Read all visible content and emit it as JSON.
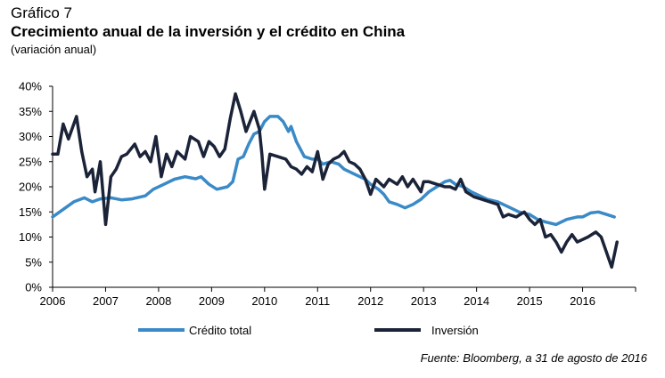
{
  "header": {
    "kicker": "Gráfico 7",
    "title": "Crecimiento anual de la inversión y el crédito en China",
    "subtitle": "(variación anual)"
  },
  "source": "Fuente: Bloomberg, a 31 de agosto de 2016",
  "colors": {
    "credito": "#3a8ac8",
    "inversion": "#1b2338",
    "axis": "#000000"
  },
  "chart_data": {
    "type": "line",
    "title": "Crecimiento anual de la inversión y el crédito en China",
    "subtitle": "(variación anual)",
    "xlabel": "",
    "ylabel": "",
    "xlim": [
      2006,
      2017
    ],
    "ylim": [
      0,
      40
    ],
    "x_ticks": [
      "2006",
      "2007",
      "2008",
      "2009",
      "2010",
      "2011",
      "2012",
      "2013",
      "2014",
      "2015",
      "2016"
    ],
    "y_ticks": [
      "0%",
      "5%",
      "10%",
      "15%",
      "20%",
      "25%",
      "30%",
      "35%",
      "40%"
    ],
    "grid": false,
    "legend_position": "bottom",
    "series": [
      {
        "name": "Crédito total",
        "color": "#3a8ac8",
        "points": [
          [
            2006.0,
            14
          ],
          [
            2006.2,
            15.5
          ],
          [
            2006.4,
            17
          ],
          [
            2006.6,
            17.8
          ],
          [
            2006.75,
            17
          ],
          [
            2006.9,
            17.6
          ],
          [
            2007.1,
            17.8
          ],
          [
            2007.3,
            17.4
          ],
          [
            2007.5,
            17.6
          ],
          [
            2007.75,
            18.2
          ],
          [
            2007.9,
            19.5
          ],
          [
            2008.1,
            20.5
          ],
          [
            2008.3,
            21.5
          ],
          [
            2008.5,
            22
          ],
          [
            2008.7,
            21.6
          ],
          [
            2008.8,
            22
          ],
          [
            2008.95,
            20.5
          ],
          [
            2009.1,
            19.5
          ],
          [
            2009.3,
            20
          ],
          [
            2009.4,
            21
          ],
          [
            2009.5,
            25.5
          ],
          [
            2009.6,
            26
          ],
          [
            2009.7,
            28.5
          ],
          [
            2009.8,
            30.5
          ],
          [
            2009.9,
            31
          ],
          [
            2010.0,
            33
          ],
          [
            2010.1,
            34
          ],
          [
            2010.25,
            34
          ],
          [
            2010.35,
            33
          ],
          [
            2010.45,
            31
          ],
          [
            2010.5,
            32
          ],
          [
            2010.6,
            29
          ],
          [
            2010.75,
            26
          ],
          [
            2010.9,
            25.5
          ],
          [
            2011.0,
            25.5
          ],
          [
            2011.1,
            24.5
          ],
          [
            2011.25,
            25
          ],
          [
            2011.4,
            24.5
          ],
          [
            2011.5,
            23.5
          ],
          [
            2011.7,
            22.5
          ],
          [
            2011.9,
            21.5
          ],
          [
            2012.0,
            20.5
          ],
          [
            2012.15,
            19.5
          ],
          [
            2012.25,
            18.5
          ],
          [
            2012.35,
            17
          ],
          [
            2012.5,
            16.5
          ],
          [
            2012.65,
            15.8
          ],
          [
            2012.8,
            16.5
          ],
          [
            2012.95,
            17.5
          ],
          [
            2013.1,
            19
          ],
          [
            2013.25,
            20
          ],
          [
            2013.4,
            21
          ],
          [
            2013.5,
            21.3
          ],
          [
            2013.6,
            20.5
          ],
          [
            2013.75,
            20
          ],
          [
            2013.9,
            19
          ],
          [
            2014.0,
            18.5
          ],
          [
            2014.2,
            17.5
          ],
          [
            2014.4,
            17
          ],
          [
            2014.6,
            16
          ],
          [
            2014.8,
            15
          ],
          [
            2015.0,
            14.5
          ],
          [
            2015.15,
            13.5
          ],
          [
            2015.3,
            13
          ],
          [
            2015.5,
            12.5
          ],
          [
            2015.7,
            13.5
          ],
          [
            2015.9,
            14
          ],
          [
            2016.0,
            14
          ],
          [
            2016.15,
            14.8
          ],
          [
            2016.3,
            15
          ],
          [
            2016.45,
            14.5
          ],
          [
            2016.6,
            14
          ]
        ]
      },
      {
        "name": "Inversión",
        "color": "#1b2338",
        "points": [
          [
            2006.0,
            26.5
          ],
          [
            2006.1,
            26.5
          ],
          [
            2006.2,
            32.5
          ],
          [
            2006.3,
            29.5
          ],
          [
            2006.45,
            34
          ],
          [
            2006.55,
            27
          ],
          [
            2006.65,
            22
          ],
          [
            2006.75,
            23.5
          ],
          [
            2006.8,
            19
          ],
          [
            2006.9,
            25
          ],
          [
            2007.0,
            12.5
          ],
          [
            2007.1,
            22
          ],
          [
            2007.2,
            23.5
          ],
          [
            2007.3,
            26
          ],
          [
            2007.4,
            26.5
          ],
          [
            2007.55,
            28.5
          ],
          [
            2007.65,
            26
          ],
          [
            2007.75,
            27
          ],
          [
            2007.85,
            25
          ],
          [
            2007.95,
            30
          ],
          [
            2008.05,
            22
          ],
          [
            2008.15,
            26.5
          ],
          [
            2008.25,
            24
          ],
          [
            2008.35,
            27
          ],
          [
            2008.5,
            25.5
          ],
          [
            2008.6,
            30
          ],
          [
            2008.75,
            29
          ],
          [
            2008.85,
            26
          ],
          [
            2008.95,
            29
          ],
          [
            2009.05,
            28
          ],
          [
            2009.15,
            26
          ],
          [
            2009.25,
            27.5
          ],
          [
            2009.35,
            33.5
          ],
          [
            2009.45,
            38.5
          ],
          [
            2009.55,
            35
          ],
          [
            2009.65,
            31
          ],
          [
            2009.8,
            35
          ],
          [
            2009.9,
            31.5
          ],
          [
            2009.95,
            26.5
          ],
          [
            2010.0,
            19.5
          ],
          [
            2010.1,
            26.5
          ],
          [
            2010.25,
            26
          ],
          [
            2010.4,
            25.5
          ],
          [
            2010.5,
            24
          ],
          [
            2010.6,
            23.5
          ],
          [
            2010.7,
            22.5
          ],
          [
            2010.8,
            24
          ],
          [
            2010.9,
            23
          ],
          [
            2011.0,
            27
          ],
          [
            2011.1,
            21.5
          ],
          [
            2011.2,
            24.5
          ],
          [
            2011.3,
            25.5
          ],
          [
            2011.4,
            26
          ],
          [
            2011.5,
            27
          ],
          [
            2011.6,
            25
          ],
          [
            2011.7,
            24.5
          ],
          [
            2011.8,
            23.5
          ],
          [
            2011.9,
            21.5
          ],
          [
            2012.0,
            18.5
          ],
          [
            2012.1,
            21.5
          ],
          [
            2012.25,
            20
          ],
          [
            2012.35,
            21.5
          ],
          [
            2012.5,
            20.5
          ],
          [
            2012.6,
            22
          ],
          [
            2012.7,
            20
          ],
          [
            2012.8,
            21.5
          ],
          [
            2012.95,
            19
          ],
          [
            2013.0,
            21
          ],
          [
            2013.1,
            21
          ],
          [
            2013.25,
            20.5
          ],
          [
            2013.4,
            20
          ],
          [
            2013.5,
            20
          ],
          [
            2013.6,
            19.5
          ],
          [
            2013.7,
            21.5
          ],
          [
            2013.8,
            19
          ],
          [
            2013.95,
            18
          ],
          [
            2014.1,
            17.5
          ],
          [
            2014.25,
            17
          ],
          [
            2014.4,
            16.5
          ],
          [
            2014.5,
            14
          ],
          [
            2014.6,
            14.5
          ],
          [
            2014.75,
            14
          ],
          [
            2014.9,
            15
          ],
          [
            2015.0,
            13.5
          ],
          [
            2015.1,
            12.5
          ],
          [
            2015.2,
            13.5
          ],
          [
            2015.3,
            10
          ],
          [
            2015.4,
            10.5
          ],
          [
            2015.5,
            9
          ],
          [
            2015.6,
            7
          ],
          [
            2015.7,
            9
          ],
          [
            2015.8,
            10.5
          ],
          [
            2015.9,
            9
          ],
          [
            2016.0,
            9.5
          ],
          [
            2016.1,
            10
          ],
          [
            2016.25,
            11
          ],
          [
            2016.35,
            10
          ],
          [
            2016.45,
            7
          ],
          [
            2016.55,
            4
          ],
          [
            2016.65,
            9
          ]
        ]
      }
    ]
  }
}
